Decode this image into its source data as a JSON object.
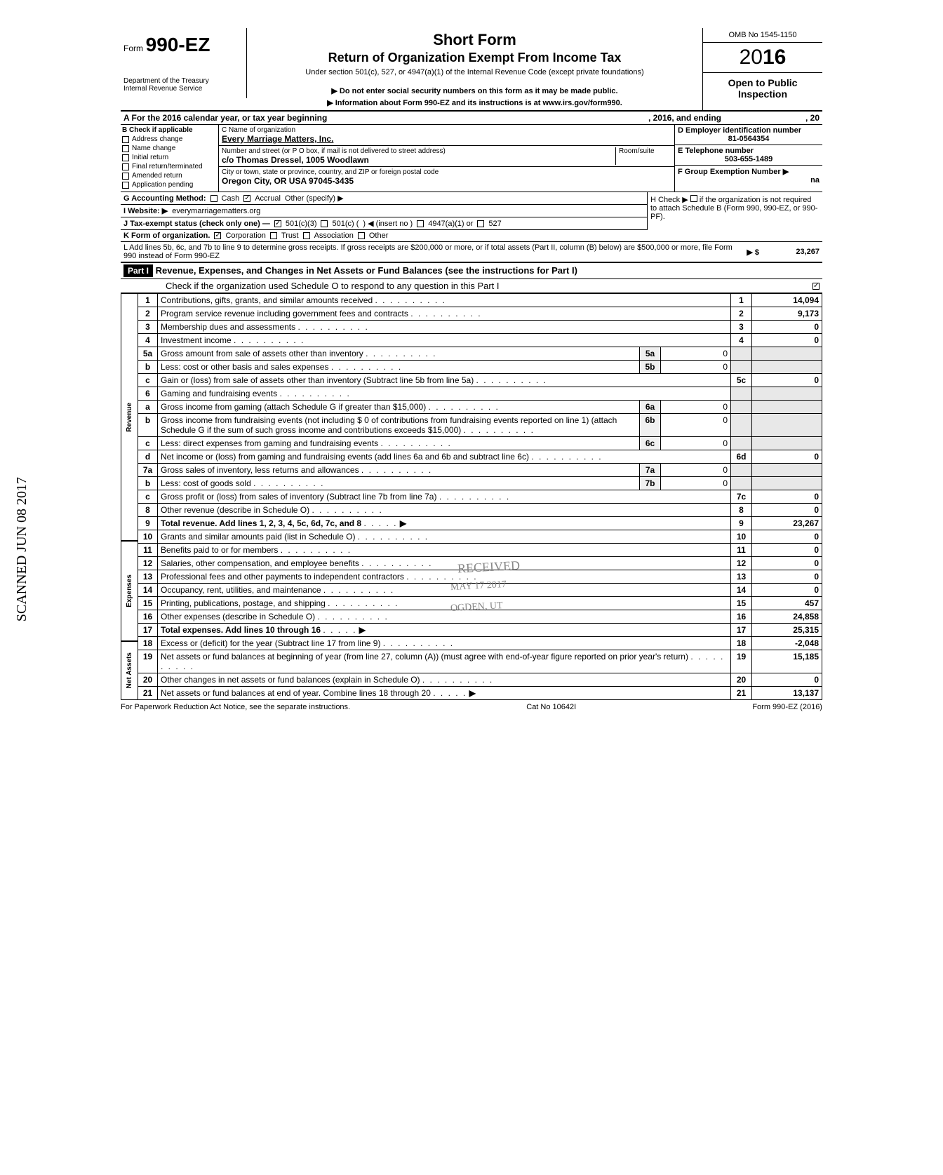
{
  "header": {
    "form_label": "Form",
    "form_number": "990-EZ",
    "dept": "Department of the Treasury\nInternal Revenue Service",
    "title": "Short Form",
    "subtitle": "Return of Organization Exempt From Income Tax",
    "under_section": "Under section 501(c), 527, or 4947(a)(1) of the Internal Revenue Code (except private foundations)",
    "note1": "▶ Do not enter social security numbers on this form as it may be made public.",
    "note2": "▶ Information about Form 990-EZ and its instructions is at www.irs.gov/form990.",
    "omb": "OMB No 1545-1150",
    "year_prefix": "20",
    "year_bold": "16",
    "open_public": "Open to Public Inspection"
  },
  "row_a": {
    "label1": "A For the 2016 calendar year, or tax year beginning",
    "label2": ", 2016, and ending",
    "label3": ", 20"
  },
  "col_b": {
    "header": "B Check if applicable",
    "items": [
      "Address change",
      "Name change",
      "Initial return",
      "Final return/terminated",
      "Amended return",
      "Application pending"
    ]
  },
  "col_c": {
    "name_label": "C Name of organization",
    "name": "Every Marriage Matters, Inc.",
    "street_label": "Number and street (or P O box, if mail is not delivered to street address)",
    "room_label": "Room/suite",
    "street": "c/o Thomas Dressel, 1005 Woodlawn",
    "city_label": "City or town, state or province, country, and ZIP or foreign postal code",
    "city": "Oregon City, OR USA 97045-3435"
  },
  "col_d": {
    "label": "D Employer identification number",
    "value": "81-0564354"
  },
  "col_e": {
    "label": "E Telephone number",
    "value": "503-655-1489"
  },
  "col_f": {
    "label": "F Group Exemption Number ▶",
    "value": "na"
  },
  "line_g": {
    "label": "G Accounting Method:",
    "cash": "Cash",
    "accrual": "Accrual",
    "other": "Other (specify) ▶"
  },
  "line_h": {
    "label": "H Check ▶",
    "text": "if the organization is not required to attach Schedule B (Form 990, 990-EZ, or 990-PF)."
  },
  "line_i": {
    "label": "I Website: ▶",
    "value": "everymarriagematters.org"
  },
  "line_j": {
    "label": "J Tax-exempt status (check only one) —",
    "c501c3": "501(c)(3)",
    "c501c": "501(c) (",
    "insert": ") ◀ (insert no )",
    "c4947": "4947(a)(1) or",
    "c527": "527"
  },
  "line_k": {
    "label": "K Form of organization.",
    "corp": "Corporation",
    "trust": "Trust",
    "assoc": "Association",
    "other": "Other"
  },
  "line_l": {
    "text": "L Add lines 5b, 6c, and 7b to line 9 to determine gross receipts. If gross receipts are $200,000 or more, or if total assets (Part II, column (B) below) are $500,000 or more, file Form 990 instead of Form 990-EZ",
    "arrow": "▶ $",
    "value": "23,267"
  },
  "part1": {
    "label": "Part I",
    "title": "Revenue, Expenses, and Changes in Net Assets or Fund Balances (see the instructions for Part I)",
    "check_line": "Check if the organization used Schedule O to respond to any question in this Part I"
  },
  "sections": {
    "revenue": "Revenue",
    "expenses": "Expenses",
    "netassets": "Net Assets"
  },
  "lines": [
    {
      "n": "1",
      "label": "Contributions, gifts, grants, and similar amounts received",
      "rn": "1",
      "val": "14,094"
    },
    {
      "n": "2",
      "label": "Program service revenue including government fees and contracts",
      "rn": "2",
      "val": "9,173"
    },
    {
      "n": "3",
      "label": "Membership dues and assessments",
      "rn": "3",
      "val": "0"
    },
    {
      "n": "4",
      "label": "Investment income",
      "rn": "4",
      "val": "0"
    },
    {
      "n": "5a",
      "label": "Gross amount from sale of assets other than inventory",
      "mn": "5a",
      "mval": "0"
    },
    {
      "n": "b",
      "label": "Less: cost or other basis and sales expenses",
      "mn": "5b",
      "mval": "0"
    },
    {
      "n": "c",
      "label": "Gain or (loss) from sale of assets other than inventory (Subtract line 5b from line 5a)",
      "rn": "5c",
      "val": "0"
    },
    {
      "n": "6",
      "label": "Gaming and fundraising events"
    },
    {
      "n": "a",
      "label": "Gross income from gaming (attach Schedule G if greater than $15,000)",
      "mn": "6a",
      "mval": "0"
    },
    {
      "n": "b",
      "label": "Gross income from fundraising events (not including $                     0 of contributions from fundraising events reported on line 1) (attach Schedule G if the sum of such gross income and contributions exceeds $15,000)",
      "mn": "6b",
      "mval": "0"
    },
    {
      "n": "c",
      "label": "Less: direct expenses from gaming and fundraising events",
      "mn": "6c",
      "mval": "0"
    },
    {
      "n": "d",
      "label": "Net income or (loss) from gaming and fundraising events (add lines 6a and 6b and subtract line 6c)",
      "rn": "6d",
      "val": "0"
    },
    {
      "n": "7a",
      "label": "Gross sales of inventory, less returns and allowances",
      "mn": "7a",
      "mval": "0"
    },
    {
      "n": "b",
      "label": "Less: cost of goods sold",
      "mn": "7b",
      "mval": "0"
    },
    {
      "n": "c",
      "label": "Gross profit or (loss) from sales of inventory (Subtract line 7b from line 7a)",
      "rn": "7c",
      "val": "0"
    },
    {
      "n": "8",
      "label": "Other revenue (describe in Schedule O)",
      "rn": "8",
      "val": "0"
    },
    {
      "n": "9",
      "label": "Total revenue. Add lines 1, 2, 3, 4, 5c, 6d, 7c, and 8",
      "rn": "9",
      "val": "23,267",
      "bold": true,
      "arrow": true
    },
    {
      "n": "10",
      "label": "Grants and similar amounts paid (list in Schedule O)",
      "rn": "10",
      "val": "0"
    },
    {
      "n": "11",
      "label": "Benefits paid to or for members",
      "rn": "11",
      "val": "0"
    },
    {
      "n": "12",
      "label": "Salaries, other compensation, and employee benefits",
      "rn": "12",
      "val": "0"
    },
    {
      "n": "13",
      "label": "Professional fees and other payments to independent contractors",
      "rn": "13",
      "val": "0"
    },
    {
      "n": "14",
      "label": "Occupancy, rent, utilities, and maintenance",
      "rn": "14",
      "val": "0"
    },
    {
      "n": "15",
      "label": "Printing, publications, postage, and shipping",
      "rn": "15",
      "val": "457"
    },
    {
      "n": "16",
      "label": "Other expenses (describe in Schedule O)",
      "rn": "16",
      "val": "24,858"
    },
    {
      "n": "17",
      "label": "Total expenses. Add lines 10 through 16",
      "rn": "17",
      "val": "25,315",
      "bold": true,
      "arrow": true
    },
    {
      "n": "18",
      "label": "Excess or (deficit) for the year (Subtract line 17 from line 9)",
      "rn": "18",
      "val": "-2,048"
    },
    {
      "n": "19",
      "label": "Net assets or fund balances at beginning of year (from line 27, column (A)) (must agree with end-of-year figure reported on prior year's return)",
      "rn": "19",
      "val": "15,185"
    },
    {
      "n": "20",
      "label": "Other changes in net assets or fund balances (explain in Schedule O)",
      "rn": "20",
      "val": "0"
    },
    {
      "n": "21",
      "label": "Net assets or fund balances at end of year. Combine lines 18 through 20",
      "rn": "21",
      "val": "13,137",
      "arrow": true
    }
  ],
  "footer": {
    "left": "For Paperwork Reduction Act Notice, see the separate instructions.",
    "mid": "Cat No 10642I",
    "right": "Form 990-EZ (2016)"
  },
  "stamps": {
    "scanned": "SCANNED JUN 08 2017",
    "received": "RECEIVED",
    "date": "MAY 17 2017",
    "ogden": "OGDEN, UT"
  }
}
